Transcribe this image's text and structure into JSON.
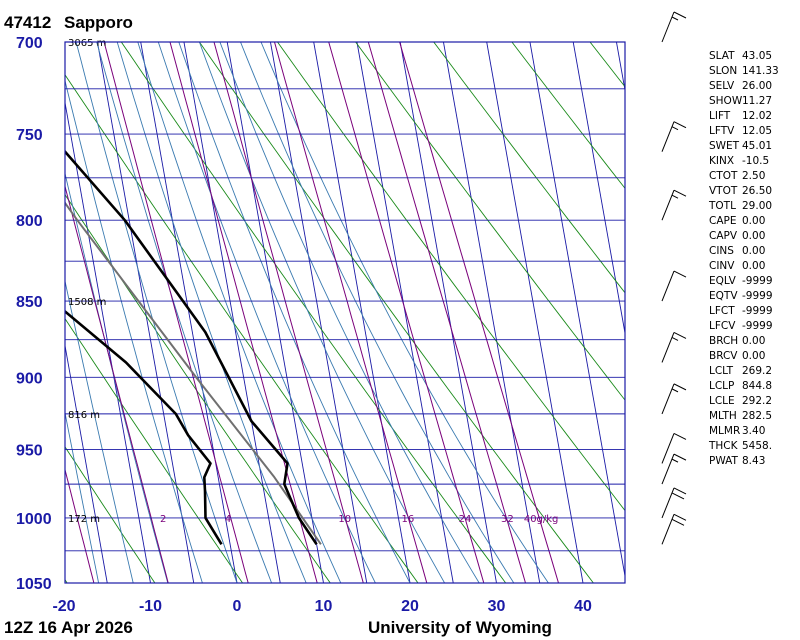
{
  "header": {
    "station_id": "47412",
    "station_name": "Sapporo"
  },
  "footer": {
    "time": "12Z 16 Apr 2026",
    "credit": "University of Wyoming"
  },
  "colors": {
    "axis": "#1a1aa6",
    "isotherm": "#1a1aa6",
    "dry_adiabat": "#1a8a1a",
    "moist_adiabat": "#3a7ab0",
    "mixing_ratio": "#7a007a",
    "parcel": "#707070",
    "sounding": "#000000"
  },
  "chart_data": {
    "type": "skew-t",
    "pressure_ticks": [
      "700",
      "750",
      "800",
      "850",
      "900",
      "950",
      "1000",
      "1050"
    ],
    "temperature_ticks": [
      "-20",
      "-10",
      "0",
      "10",
      "20",
      "30",
      "40"
    ],
    "xlim": [
      -20,
      45
    ],
    "pressure_range_hPa": [
      700,
      1050
    ],
    "height_labels": [
      {
        "p": 700,
        "text": "3065 m"
      },
      {
        "p": 850,
        "text": "1508 m"
      },
      {
        "p": 925,
        "text": "816 m"
      },
      {
        "p": 1000,
        "text": "172 m"
      }
    ],
    "mixing_ratio_labels": [
      {
        "w": "2",
        "t": -7.2
      },
      {
        "w": "4",
        "t": 0.3
      },
      {
        "w": "10",
        "t": 13.8
      },
      {
        "w": "16",
        "t": 21.1
      },
      {
        "w": "24",
        "t": 27.7
      },
      {
        "w": "32",
        "t": 32.6
      },
      {
        "w": "40g/kg",
        "t": 36.5
      }
    ],
    "temperature_profile": [
      {
        "p": 1020,
        "t": -1
      },
      {
        "p": 1000,
        "t": -2.3
      },
      {
        "p": 980,
        "t": -1.8
      },
      {
        "p": 970,
        "t": -1.6
      },
      {
        "p": 960,
        "t": -0.6
      },
      {
        "p": 940,
        "t": -2.6
      },
      {
        "p": 925,
        "t": -3.6
      },
      {
        "p": 890,
        "t": -8.3
      },
      {
        "p": 850,
        "t": -15.5
      },
      {
        "p": 820,
        "t": -21
      },
      {
        "p": 760,
        "t": -28
      },
      {
        "p": 745,
        "t": -30
      },
      {
        "p": 742,
        "t": -23.5
      },
      {
        "p": 700,
        "t": -28
      }
    ],
    "dewpoint_profile": [
      {
        "p": 1020,
        "t": 10
      },
      {
        "p": 1000,
        "t": 8.5
      },
      {
        "p": 975,
        "t": 7.5
      },
      {
        "p": 960,
        "t": 8.3
      },
      {
        "p": 930,
        "t": 5
      },
      {
        "p": 870,
        "t": 1.5
      },
      {
        "p": 800,
        "t": -5.5
      },
      {
        "p": 760,
        "t": -11
      },
      {
        "p": 745,
        "t": -13.5
      },
      {
        "p": 740,
        "t": -12.5
      },
      {
        "p": 700,
        "t": -14
      }
    ],
    "parcel_profile": [
      {
        "p": 1020,
        "t": 10.5
      },
      {
        "p": 970,
        "t": 6.5
      },
      {
        "p": 900,
        "t": -0.5
      },
      {
        "p": 800,
        "t": -11
      },
      {
        "p": 700,
        "t": -22
      }
    ],
    "wind_barbs": [
      {
        "p": 1020,
        "speed_kt": 20
      },
      {
        "p": 1000,
        "speed_kt": 20
      },
      {
        "p": 975,
        "speed_kt": 15
      },
      {
        "p": 960,
        "speed_kt": 10
      },
      {
        "p": 925,
        "speed_kt": 15
      },
      {
        "p": 890,
        "speed_kt": 15
      },
      {
        "p": 850,
        "speed_kt": 10
      },
      {
        "p": 800,
        "speed_kt": 15
      },
      {
        "p": 760,
        "speed_kt": 15
      },
      {
        "p": 700,
        "speed_kt": 15
      }
    ]
  },
  "indices": [
    {
      "key": "SLAT",
      "value": "43.05"
    },
    {
      "key": "SLON",
      "value": "141.33"
    },
    {
      "key": "SELV",
      "value": "26.00"
    },
    {
      "key": "SHOW",
      "value": "11.27"
    },
    {
      "key": "LIFT",
      "value": "12.02"
    },
    {
      "key": "LFTV",
      "value": "12.05"
    },
    {
      "key": "SWET",
      "value": "45.01"
    },
    {
      "key": "KINX",
      "value": "-10.5"
    },
    {
      "key": "CTOT",
      "value": "2.50"
    },
    {
      "key": "VTOT",
      "value": "26.50"
    },
    {
      "key": "TOTL",
      "value": "29.00"
    },
    {
      "key": "CAPE",
      "value": "0.00"
    },
    {
      "key": "CAPV",
      "value": "0.00"
    },
    {
      "key": "CINS",
      "value": "0.00"
    },
    {
      "key": "CINV",
      "value": "0.00"
    },
    {
      "key": "EQLV",
      "value": "-9999"
    },
    {
      "key": "EQTV",
      "value": "-9999"
    },
    {
      "key": "LFCT",
      "value": "-9999"
    },
    {
      "key": "LFCV",
      "value": "-9999"
    },
    {
      "key": "BRCH",
      "value": "0.00"
    },
    {
      "key": "BRCV",
      "value": "0.00"
    },
    {
      "key": "LCLT",
      "value": "269.2"
    },
    {
      "key": "LCLP",
      "value": "844.8"
    },
    {
      "key": "LCLE",
      "value": "292.2"
    },
    {
      "key": "MLTH",
      "value": "282.5"
    },
    {
      "key": "MLMR",
      "value": "3.40"
    },
    {
      "key": "THCK",
      "value": "5458."
    },
    {
      "key": "PWAT",
      "value": "8.43"
    }
  ]
}
